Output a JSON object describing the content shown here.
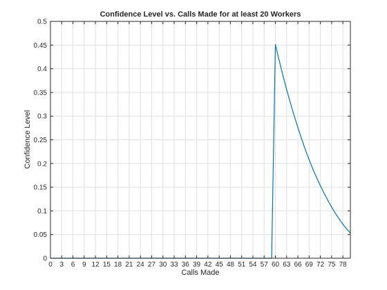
{
  "chart_data": {
    "type": "line",
    "title": "Confidence Level vs. Calls Made for at least 20 Workers",
    "xlabel": "Calls Made",
    "ylabel": "Confidence Level",
    "xlim": [
      0,
      80
    ],
    "ylim": [
      0,
      0.5
    ],
    "xticks": [
      0,
      3,
      6,
      9,
      12,
      15,
      18,
      21,
      24,
      27,
      30,
      33,
      36,
      39,
      42,
      45,
      48,
      51,
      54,
      57,
      60,
      63,
      66,
      69,
      72,
      75,
      78
    ],
    "yticks": [
      0,
      0.05,
      0.1,
      0.15,
      0.2,
      0.25,
      0.3,
      0.35,
      0.4,
      0.45,
      0.5
    ],
    "ytick_labels": [
      "0",
      "0.05",
      "0.1",
      "0.15",
      "0.2",
      "0.25",
      "0.3",
      "0.35",
      "0.4",
      "0.45",
      "0.5"
    ],
    "grid": true,
    "series": [
      {
        "name": "Confidence Level",
        "color": "#0072bd",
        "x": [
          0,
          10,
          20,
          30,
          40,
          50,
          59,
          60,
          61,
          62,
          63,
          64,
          65,
          66,
          67,
          68,
          69,
          70,
          71,
          72,
          73,
          74,
          75,
          76,
          77,
          78,
          79,
          80
        ],
        "y": [
          0,
          0,
          0,
          0,
          0,
          0,
          0,
          0.451,
          0.418,
          0.386,
          0.356,
          0.328,
          0.301,
          0.276,
          0.252,
          0.229,
          0.208,
          0.188,
          0.17,
          0.153,
          0.137,
          0.122,
          0.108,
          0.095,
          0.083,
          0.072,
          0.062,
          0.053
        ]
      }
    ]
  }
}
